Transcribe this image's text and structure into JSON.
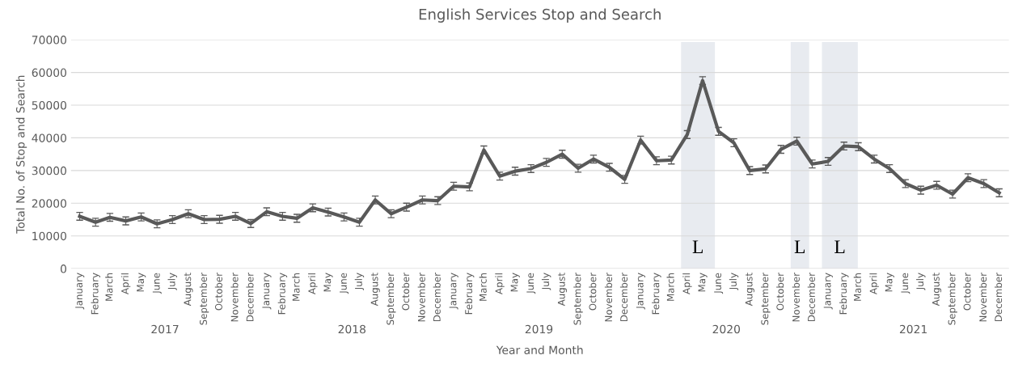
{
  "chart_data": {
    "type": "line",
    "title": "English Services Stop and Search",
    "xlabel": "Year and Month",
    "ylabel": "Total No. of Stop and Search",
    "x": [
      "2017-01",
      "2017-02",
      "2017-03",
      "2017-04",
      "2017-05",
      "2017-06",
      "2017-07",
      "2017-08",
      "2017-09",
      "2017-10",
      "2017-11",
      "2017-12",
      "2018-01",
      "2018-02",
      "2018-03",
      "2018-04",
      "2018-05",
      "2018-06",
      "2018-07",
      "2018-08",
      "2018-09",
      "2018-10",
      "2018-11",
      "2018-12",
      "2019-01",
      "2019-02",
      "2019-03",
      "2019-04",
      "2019-05",
      "2019-06",
      "2019-07",
      "2019-08",
      "2019-09",
      "2019-10",
      "2019-11",
      "2019-12",
      "2020-01",
      "2020-02",
      "2020-03",
      "2020-04",
      "2020-05",
      "2020-06",
      "2020-07",
      "2020-08",
      "2020-09",
      "2020-10",
      "2020-11",
      "2020-12",
      "2021-01",
      "2021-02",
      "2021-03",
      "2021-04",
      "2021-05",
      "2021-06",
      "2021-07",
      "2021-08",
      "2021-09",
      "2021-10",
      "2021-11",
      "2021-12"
    ],
    "series": [
      {
        "color": "#595959",
        "values": [
          16000,
          14200,
          15700,
          14600,
          15800,
          13700,
          15000,
          16800,
          15000,
          15100,
          16000,
          13800,
          17400,
          16000,
          15400,
          18600,
          17300,
          15800,
          14200,
          21000,
          16800,
          18800,
          21000,
          20800,
          25200,
          25000,
          36300,
          28300,
          29800,
          30600,
          32500,
          35000,
          30700,
          33500,
          31000,
          27300,
          39300,
          33000,
          33200,
          41000,
          57500,
          42000,
          38500,
          30000,
          30500,
          36500,
          39000,
          32000,
          32800,
          37500,
          37300,
          33500,
          30600,
          26000,
          24000,
          25500,
          22800,
          27800,
          26000,
          23200
        ],
        "errors": [
          1200,
          1200,
          1200,
          1200,
          1200,
          1200,
          1200,
          1200,
          1200,
          1200,
          1200,
          1200,
          1200,
          1200,
          1200,
          1200,
          1200,
          1200,
          1200,
          1200,
          1200,
          1200,
          1200,
          1200,
          1200,
          1200,
          1200,
          1200,
          1200,
          1200,
          1200,
          1200,
          1200,
          1200,
          1200,
          1200,
          1200,
          1200,
          1200,
          1200,
          1200,
          1200,
          1200,
          1200,
          1200,
          1200,
          1200,
          1200,
          1200,
          1200,
          1200,
          1200,
          1200,
          1200,
          1200,
          1200,
          1200,
          1200,
          1200,
          1200
        ]
      }
    ],
    "xlim": [
      "2016-12-15",
      "2021-12-20"
    ],
    "xticks": [
      {
        "value": "2017-01",
        "label": "January"
      },
      {
        "value": "2017-02",
        "label": "February"
      },
      {
        "value": "2017-03",
        "label": "March"
      },
      {
        "value": "2017-04",
        "label": "April"
      },
      {
        "value": "2017-05",
        "label": "May"
      },
      {
        "value": "2017-06",
        "label": "June"
      },
      {
        "value": "2017-07",
        "label": "July"
      },
      {
        "value": "2017-08",
        "label": "August"
      },
      {
        "value": "2017-09",
        "label": "September"
      },
      {
        "value": "2017-10",
        "label": "October"
      },
      {
        "value": "2017-11",
        "label": "November"
      },
      {
        "value": "2017-12",
        "label": "December"
      },
      {
        "value": "2018-01",
        "label": "January"
      },
      {
        "value": "2018-02",
        "label": "February"
      },
      {
        "value": "2018-03",
        "label": "March"
      },
      {
        "value": "2018-04",
        "label": "April"
      },
      {
        "value": "2018-05",
        "label": "May"
      },
      {
        "value": "2018-06",
        "label": "June"
      },
      {
        "value": "2018-07",
        "label": "July"
      },
      {
        "value": "2018-08",
        "label": "August"
      },
      {
        "value": "2018-09",
        "label": "September"
      },
      {
        "value": "2018-10",
        "label": "October"
      },
      {
        "value": "2018-11",
        "label": "November"
      },
      {
        "value": "2018-12",
        "label": "December"
      },
      {
        "value": "2019-01",
        "label": "January"
      },
      {
        "value": "2019-02",
        "label": "February"
      },
      {
        "value": "2019-03",
        "label": "March"
      },
      {
        "value": "2019-04",
        "label": "April"
      },
      {
        "value": "2019-05",
        "label": "May"
      },
      {
        "value": "2019-06",
        "label": "June"
      },
      {
        "value": "2019-07",
        "label": "July"
      },
      {
        "value": "2019-08",
        "label": "August"
      },
      {
        "value": "2019-09",
        "label": "September"
      },
      {
        "value": "2019-10",
        "label": "October"
      },
      {
        "value": "2019-11",
        "label": "November"
      },
      {
        "value": "2019-12",
        "label": "December"
      },
      {
        "value": "2020-01",
        "label": "January"
      },
      {
        "value": "2020-02",
        "label": "February"
      },
      {
        "value": "2020-03",
        "label": "March"
      },
      {
        "value": "2020-04",
        "label": "April"
      },
      {
        "value": "2020-05",
        "label": "May"
      },
      {
        "value": "2020-06",
        "label": "June"
      },
      {
        "value": "2020-07",
        "label": "July"
      },
      {
        "value": "2020-08",
        "label": "August"
      },
      {
        "value": "2020-09",
        "label": "September"
      },
      {
        "value": "2020-10",
        "label": "October"
      },
      {
        "value": "2020-11",
        "label": "November"
      },
      {
        "value": "2020-12",
        "label": "December"
      },
      {
        "value": "2021-01",
        "label": "January"
      },
      {
        "value": "2021-02",
        "label": "February"
      },
      {
        "value": "2021-03",
        "label": "March"
      },
      {
        "value": "2021-04",
        "label": "April"
      },
      {
        "value": "2021-05",
        "label": "May"
      },
      {
        "value": "2021-06",
        "label": "June"
      },
      {
        "value": "2021-07",
        "label": "July"
      },
      {
        "value": "2021-08",
        "label": "August"
      },
      {
        "value": "2021-09",
        "label": "September"
      },
      {
        "value": "2021-10",
        "label": "October"
      },
      {
        "value": "2021-11",
        "label": "November"
      },
      {
        "value": "2021-12",
        "label": "December"
      }
    ],
    "ylim": [
      0,
      70000
    ],
    "yticks": [
      0,
      10000,
      20000,
      30000,
      40000,
      50000,
      60000,
      70000
    ],
    "grid": "y",
    "bands": [
      {
        "axis": "x",
        "from": "2020-03-20",
        "to": "2020-05-25",
        "label": "L",
        "color": "#e8ebf0"
      },
      {
        "axis": "x",
        "from": "2020-10-20",
        "to": "2020-11-25",
        "label": "L",
        "color": "#e8ebf0"
      },
      {
        "axis": "x",
        "from": "2020-12-20",
        "to": "2021-02-28",
        "label": "L",
        "color": "#e8ebf0"
      }
    ],
    "annotations": [
      "2017",
      "2018",
      "2019",
      "2020",
      "2021"
    ]
  }
}
